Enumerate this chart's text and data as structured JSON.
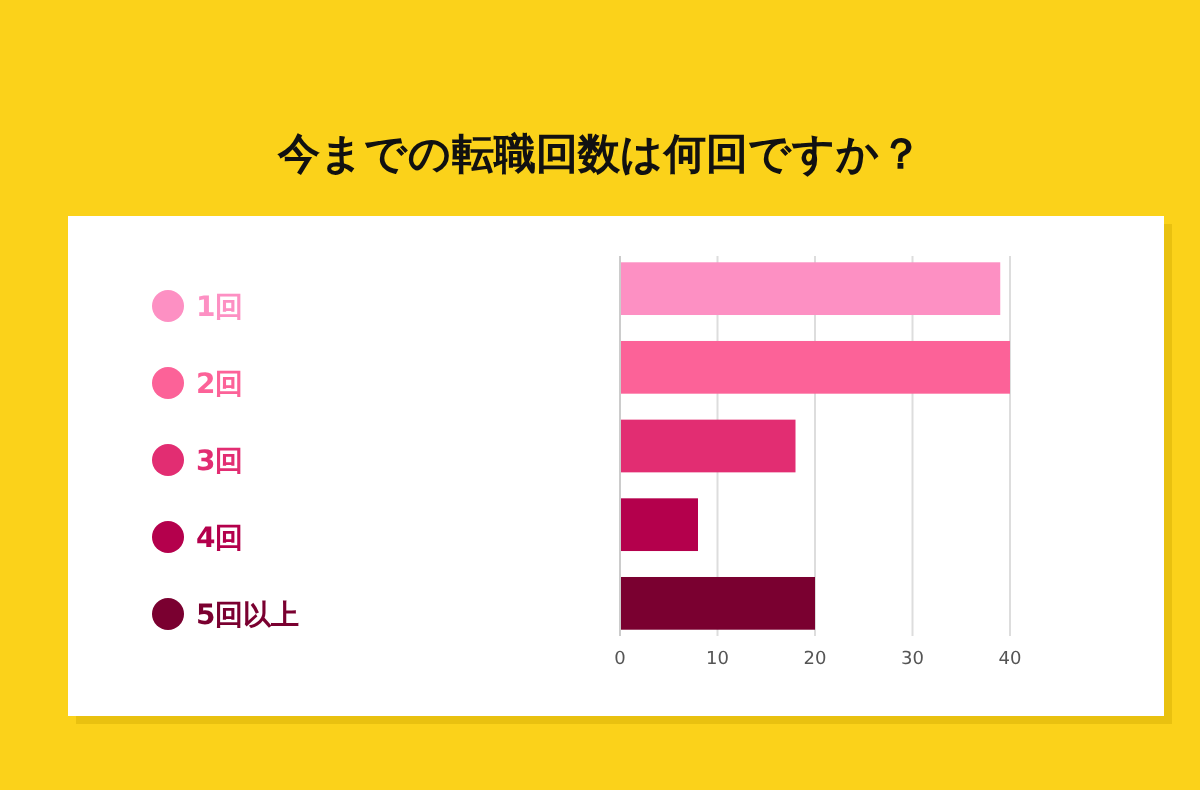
{
  "chart_data": {
    "type": "bar",
    "orientation": "horizontal",
    "stacked": true,
    "title": "今までの転職回数は何回ですか？",
    "categories": [
      null,
      null,
      null,
      null,
      null
    ],
    "series": [
      {
        "name": "1回",
        "color": "#fd90c3",
        "values": [
          39,
          null,
          null,
          null,
          null
        ]
      },
      {
        "name": "2回",
        "color": "#fc6298",
        "values": [
          null,
          40,
          null,
          null,
          null
        ]
      },
      {
        "name": "3回",
        "color": "#e22d72",
        "values": [
          null,
          null,
          18,
          null,
          null
        ]
      },
      {
        "name": "4回",
        "color": "#b4004c",
        "values": [
          null,
          null,
          null,
          8,
          null
        ]
      },
      {
        "name": "5回以上",
        "color": "#7a0030",
        "values": [
          null,
          null,
          null,
          null,
          20
        ]
      }
    ],
    "xlim": [
      0,
      40
    ],
    "xticks": [
      0,
      10,
      20,
      30,
      40
    ],
    "grid": "x",
    "legend": "left",
    "tick_labels": "x"
  }
}
